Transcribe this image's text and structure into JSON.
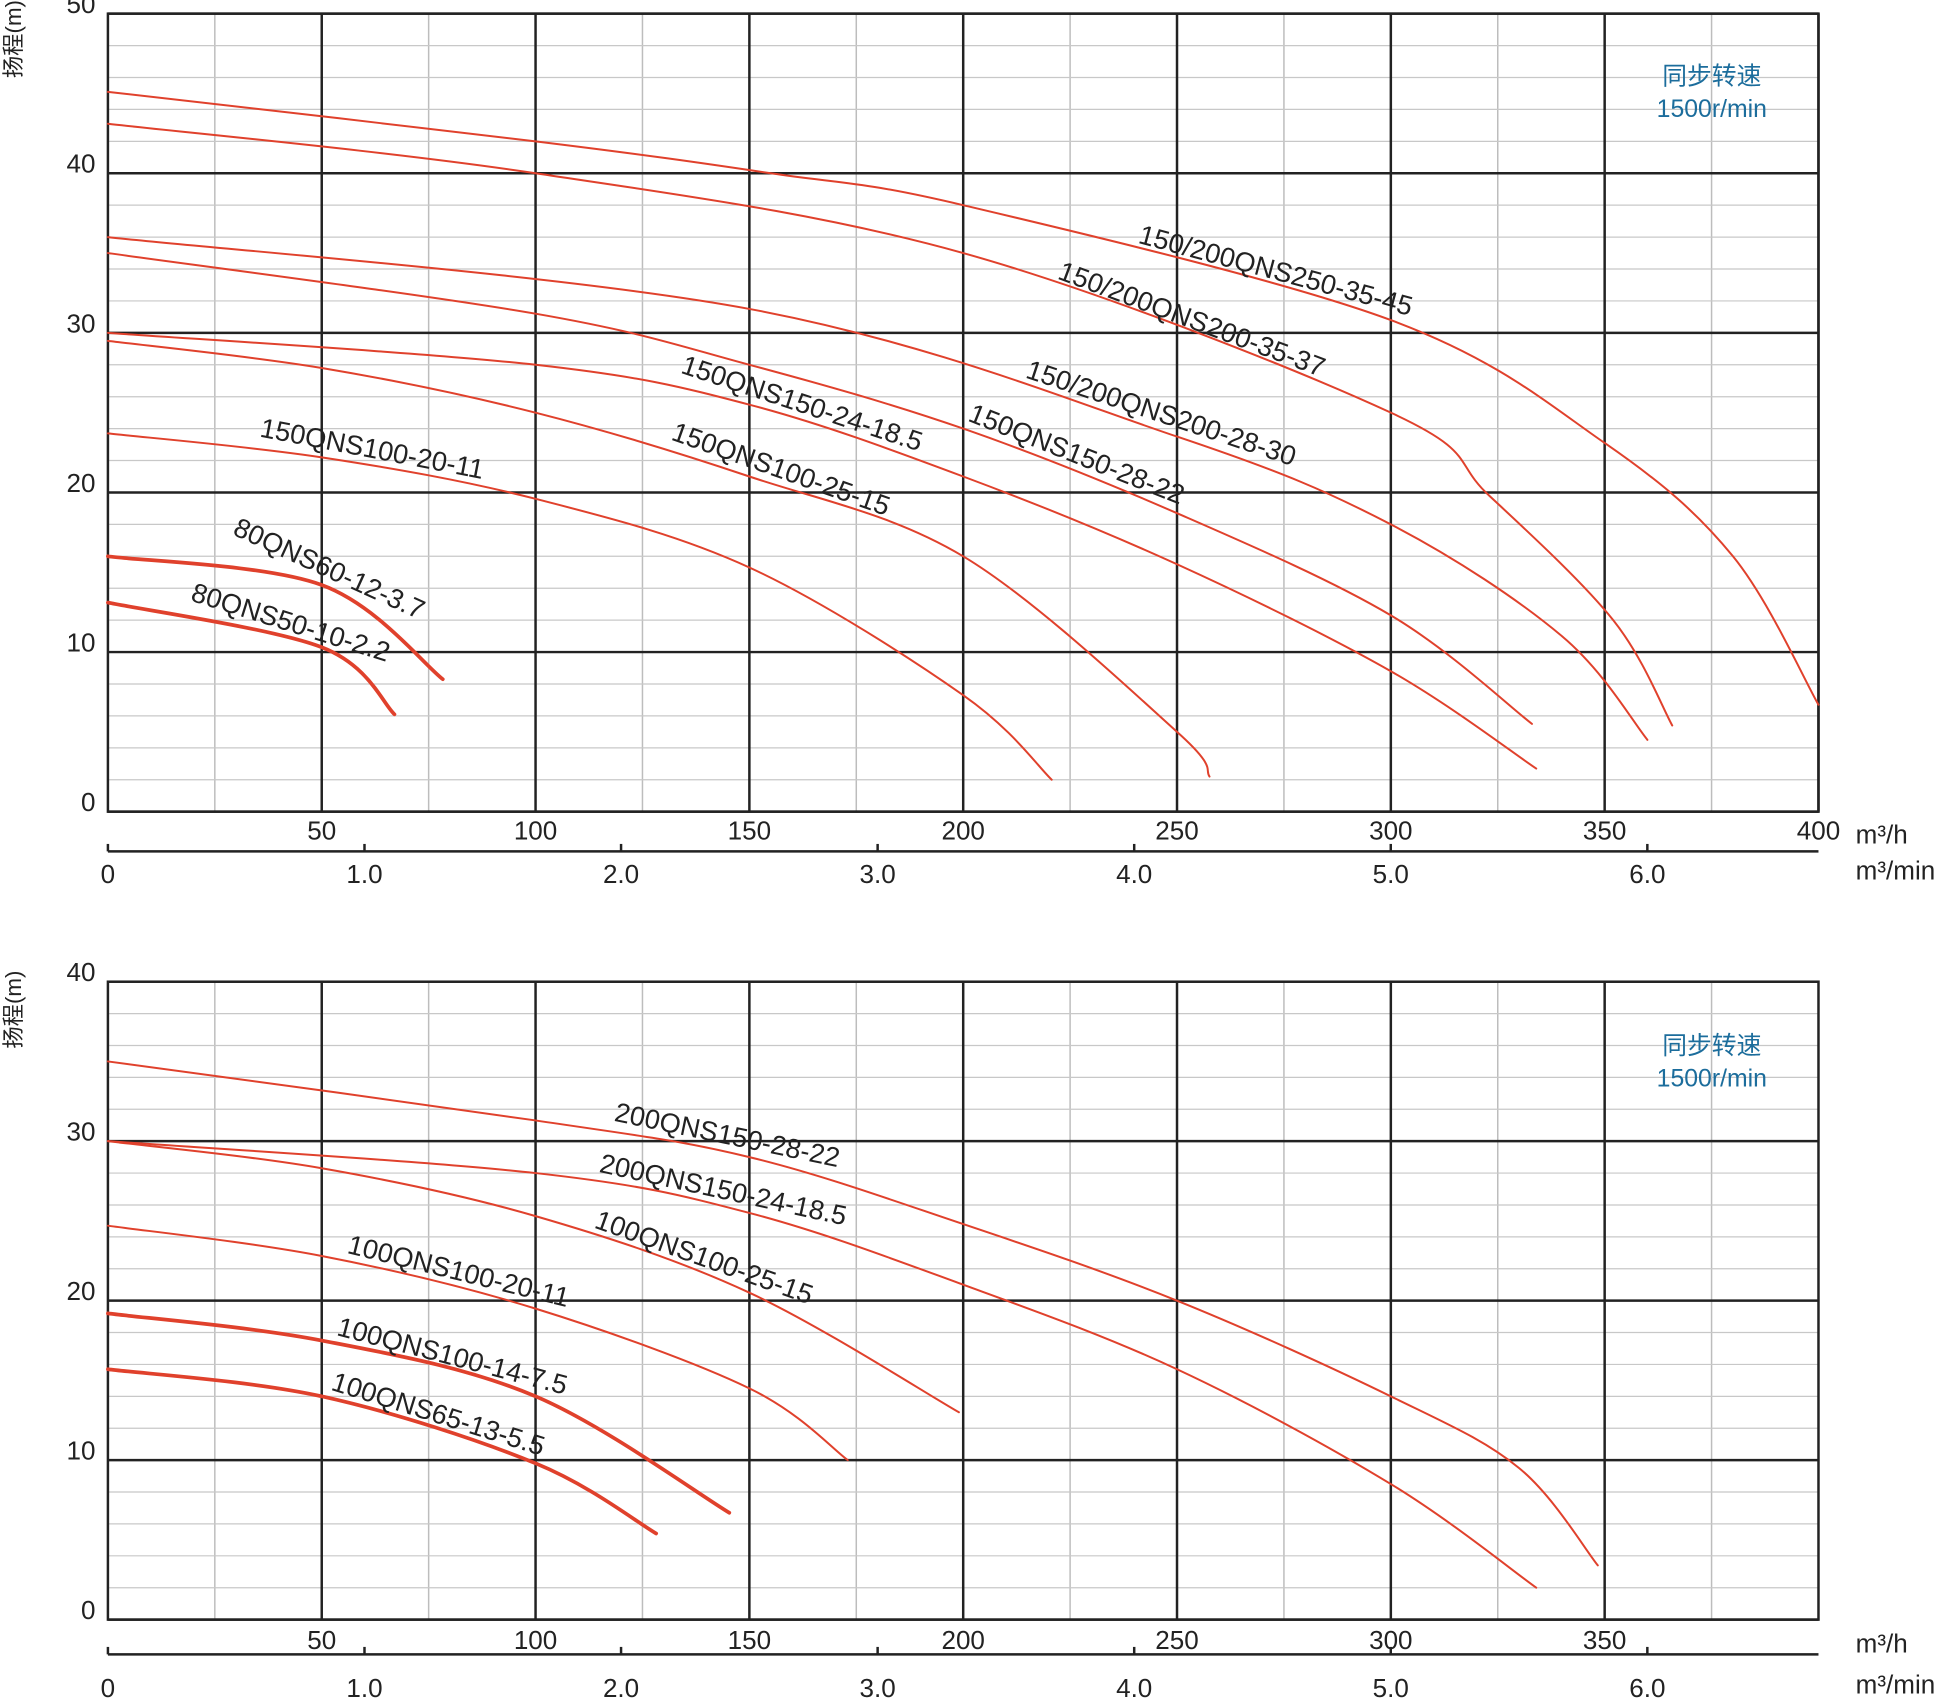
{
  "chart_data": [
    {
      "type": "line",
      "y_label": "扬程(m)",
      "x_unit": "m³/h",
      "x2_unit": "m³/min",
      "annotation": [
        "同步转速",
        "1500r/min"
      ],
      "xlim": [
        0,
        400
      ],
      "ylim": [
        0,
        50
      ],
      "x2lim": [
        0,
        6.667
      ],
      "xticks": [
        50,
        100,
        150,
        200,
        250,
        300,
        350,
        400
      ],
      "yticks": [
        0,
        10,
        20,
        30,
        40,
        50
      ],
      "x2ticks": [
        0,
        {
          "value": 1,
          "label": "1.0"
        },
        {
          "value": 2,
          "label": "2.0"
        },
        {
          "value": 3,
          "label": "3.0"
        },
        {
          "value": 4,
          "label": "4.0"
        },
        {
          "value": 5,
          "label": "5.0"
        },
        {
          "value": 6,
          "label": "6.0"
        }
      ],
      "grid": true,
      "minor_grid": true,
      "series": [
        {
          "name": "150/200QNS250-35-45",
          "color": "#e0412c",
          "line_width": 1.6,
          "x": [
            0,
            100,
            155,
            200,
            300,
            350,
            380,
            400
          ],
          "values": [
            45.1,
            42,
            40,
            38,
            30.8,
            23.1,
            16,
            6.7
          ]
        },
        {
          "name": "150/200QNS200-35-37",
          "color": "#e0412c",
          "line_width": 1.6,
          "x": [
            0,
            100,
            200,
            300,
            323,
            352,
            365.8
          ],
          "values": [
            43.1,
            40,
            35,
            25,
            19.8,
            12,
            5.4
          ]
        },
        {
          "name": "150/200QNS200-28-30",
          "color": "#e0412c",
          "line_width": 1.6,
          "x": [
            0,
            150,
            250,
            300,
            340,
            360
          ],
          "values": [
            36,
            31.5,
            23.5,
            18,
            11,
            4.5
          ]
        },
        {
          "name": "150QNS150-28-22",
          "color": "#e0412c",
          "line_width": 1.6,
          "x": [
            0,
            100,
            150,
            200,
            250,
            300,
            333
          ],
          "values": [
            35,
            31.2,
            28,
            24,
            18.7,
            12.3,
            5.5
          ]
        },
        {
          "name": "150QNS150-24-18.5",
          "color": "#e0412c",
          "line_width": 1.6,
          "x": [
            0,
            100,
            150,
            200,
            250,
            300,
            334
          ],
          "values": [
            30,
            28,
            25.5,
            21,
            15.5,
            8.8,
            2.7
          ]
        },
        {
          "name": "150QNS100-25-15",
          "color": "#e0412c",
          "line_width": 1.6,
          "x": [
            0,
            50,
            100,
            150,
            200,
            250,
            257.6
          ],
          "values": [
            29.5,
            27.8,
            25,
            21,
            16,
            5,
            2.2
          ]
        },
        {
          "name": "150QNS100-20-11",
          "color": "#e0412c",
          "line_width": 1.6,
          "x": [
            0,
            50,
            100,
            150,
            200,
            220.7
          ],
          "values": [
            23.7,
            22.2,
            19.6,
            15.3,
            7.3,
            2
          ]
        },
        {
          "name": "80QNS60-12-3.7",
          "color": "#e0412c",
          "line_width": 3,
          "x": [
            0,
            50,
            78.3
          ],
          "values": [
            16,
            14.2,
            8.3
          ]
        },
        {
          "name": "80QNS50-10-2.2",
          "color": "#e0412c",
          "line_width": 3,
          "x": [
            0,
            50,
            67
          ],
          "values": [
            13.1,
            10.3,
            6.1
          ]
        }
      ]
    },
    {
      "type": "line",
      "y_label": "扬程(m)",
      "x_unit": "m³/h",
      "x2_unit": "m³/min",
      "annotation": [
        "同步转速",
        "1500r/min"
      ],
      "xlim": [
        0,
        400
      ],
      "ylim": [
        0,
        40
      ],
      "x2lim": [
        0,
        6.667
      ],
      "xticks": [
        50,
        100,
        150,
        200,
        250,
        300,
        350
      ],
      "yticks": [
        0,
        10,
        20,
        30,
        40
      ],
      "x2ticks": [
        0,
        {
          "value": 1,
          "label": "1.0"
        },
        {
          "value": 2,
          "label": "2.0"
        },
        {
          "value": 3,
          "label": "3.0"
        },
        {
          "value": 4,
          "label": "4.0"
        },
        {
          "value": 5,
          "label": "5.0"
        },
        {
          "value": 6,
          "label": "6.0"
        }
      ],
      "grid": true,
      "minor_grid": true,
      "series": [
        {
          "name": "200QNS150-28-22",
          "color": "#e0412c",
          "line_width": 1.6,
          "x": [
            0,
            100,
            150,
            200,
            250,
            300,
            330,
            348.4
          ],
          "values": [
            35,
            31.3,
            29,
            24.8,
            20,
            14,
            9.5,
            3.4
          ]
        },
        {
          "name": "200QNS150-24-18.5",
          "color": "#e0412c",
          "line_width": 1.6,
          "x": [
            0,
            100,
            150,
            200,
            250,
            300,
            334
          ],
          "values": [
            30,
            28,
            25.5,
            21,
            15.7,
            8.5,
            2
          ]
        },
        {
          "name": "100QNS100-25-15",
          "color": "#e0412c",
          "line_width": 1.6,
          "x": [
            0,
            50,
            100,
            150,
            199
          ],
          "values": [
            30,
            28.3,
            25.3,
            20.5,
            13
          ]
        },
        {
          "name": "100QNS100-20-11",
          "color": "#e0412c",
          "line_width": 1.6,
          "x": [
            0,
            50,
            100,
            150,
            173
          ],
          "values": [
            24.7,
            22.8,
            19.5,
            14.5,
            10
          ]
        },
        {
          "name": "100QNS100-14-7.5",
          "color": "#e0412c",
          "line_width": 3,
          "x": [
            0,
            50,
            100,
            145.3
          ],
          "values": [
            19.2,
            17.5,
            14,
            6.7
          ]
        },
        {
          "name": "100QNS65-13-5.5",
          "color": "#e0412c",
          "line_width": 3,
          "x": [
            0,
            50,
            100,
            128.2
          ],
          "values": [
            15.7,
            14,
            9.8,
            5.4
          ]
        }
      ]
    }
  ]
}
